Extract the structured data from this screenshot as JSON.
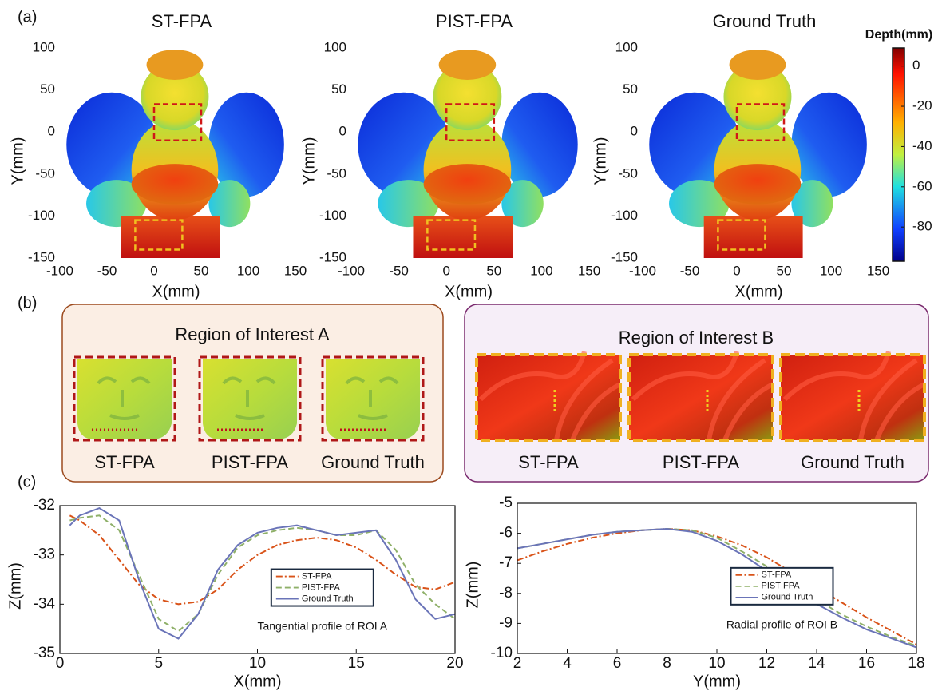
{
  "panels": {
    "a": "(a)",
    "b": "(b)",
    "c": "(c)"
  },
  "roi": [
    {
      "title": "Region of Interest A",
      "captions": [
        "ST-FPA",
        "PIST-FPA",
        "Ground Truth"
      ]
    },
    {
      "title": "Region of Interest B",
      "captions": [
        "ST-FPA",
        "PIST-FPA",
        "Ground Truth"
      ]
    }
  ],
  "chart_data": [
    {
      "type": "image",
      "title": "ST-FPA",
      "x_label": "X(mm)",
      "y_label": "Y(mm)",
      "xlim": [
        -100,
        150
      ],
      "ylim": [
        -150,
        100
      ],
      "xticks": [
        -100,
        -50,
        0,
        50,
        100,
        150
      ],
      "yticks": [
        -150,
        -100,
        -50,
        0,
        50,
        100
      ]
    },
    {
      "type": "image",
      "title": "PIST-FPA",
      "x_label": "X(mm)",
      "y_label": "Y(mm)",
      "xlim": [
        -100,
        150
      ],
      "ylim": [
        -150,
        100
      ],
      "xticks": [
        -100,
        -50,
        0,
        50,
        100,
        150
      ],
      "yticks": [
        -150,
        -100,
        -50,
        0,
        50,
        100
      ]
    },
    {
      "type": "image",
      "title": "Ground Truth",
      "x_label": "X(mm)",
      "y_label": "Y(mm)",
      "xlim": [
        -100,
        150
      ],
      "ylim": [
        -150,
        100
      ],
      "xticks": [
        -100,
        -50,
        0,
        50,
        100,
        150
      ],
      "yticks": [
        -150,
        -100,
        -50,
        0,
        50,
        100
      ]
    },
    {
      "type": "colorbar",
      "title": "Depth(mm)",
      "ylim": [
        -97,
        9
      ],
      "yticks": [
        -80,
        -60,
        -40,
        -20,
        0
      ]
    },
    {
      "type": "line",
      "x_label": "X(mm)",
      "y_label": "Z(mm)",
      "annotation": "Tangential profile of ROI A",
      "xlim": [
        0,
        20
      ],
      "ylim": [
        -35,
        -32
      ],
      "xticks": [
        0,
        5,
        10,
        15,
        20
      ],
      "yticks": [
        -35,
        -34,
        -33,
        -32
      ],
      "x": [
        0.5,
        1,
        2,
        3,
        4,
        5,
        6,
        7,
        8,
        9,
        10,
        11,
        12,
        13,
        14,
        15,
        16,
        17,
        18,
        19,
        20
      ],
      "series": [
        {
          "name": "ST-FPA",
          "color": "#d95319",
          "linestyle": "dash-dot",
          "values": [
            -32.2,
            -32.3,
            -32.6,
            -33.1,
            -33.6,
            -33.9,
            -34.0,
            -33.95,
            -33.7,
            -33.3,
            -33.0,
            -32.8,
            -32.7,
            -32.65,
            -32.7,
            -32.85,
            -33.1,
            -33.4,
            -33.65,
            -33.7,
            -33.55
          ]
        },
        {
          "name": "PIST-FPA",
          "color": "#8fb069",
          "linestyle": "dashed",
          "values": [
            -32.3,
            -32.25,
            -32.2,
            -32.5,
            -33.4,
            -34.3,
            -34.55,
            -34.2,
            -33.4,
            -32.85,
            -32.6,
            -32.5,
            -32.45,
            -32.5,
            -32.6,
            -32.6,
            -32.5,
            -32.9,
            -33.6,
            -34.0,
            -34.3
          ]
        },
        {
          "name": "Ground Truth",
          "color": "#6a74b8",
          "linestyle": "solid",
          "values": [
            -32.4,
            -32.2,
            -32.05,
            -32.3,
            -33.5,
            -34.5,
            -34.7,
            -34.2,
            -33.3,
            -32.8,
            -32.55,
            -32.45,
            -32.4,
            -32.5,
            -32.6,
            -32.55,
            -32.5,
            -33.1,
            -33.9,
            -34.3,
            -34.2
          ]
        }
      ]
    },
    {
      "type": "line",
      "x_label": "Y(mm)",
      "y_label": "Z(mm)",
      "annotation": "Radial profile of ROI B",
      "xlim": [
        2,
        18
      ],
      "ylim": [
        -10,
        -5
      ],
      "xticks": [
        2,
        4,
        6,
        8,
        10,
        12,
        14,
        16,
        18
      ],
      "yticks": [
        -10,
        -9,
        -8,
        -7,
        -6,
        -5
      ],
      "x": [
        2,
        3,
        4,
        5,
        6,
        7,
        8,
        9,
        10,
        11,
        12,
        13,
        14,
        15,
        16,
        17,
        18
      ],
      "series": [
        {
          "name": "ST-FPA",
          "color": "#d95319",
          "linestyle": "dash-dot",
          "values": [
            -6.9,
            -6.6,
            -6.35,
            -6.15,
            -6.0,
            -5.9,
            -5.85,
            -5.9,
            -6.1,
            -6.4,
            -6.8,
            -7.3,
            -7.8,
            -8.3,
            -8.8,
            -9.25,
            -9.7
          ]
        },
        {
          "name": "PIST-FPA",
          "color": "#8fb069",
          "linestyle": "dashed",
          "values": [
            -6.5,
            -6.35,
            -6.2,
            -6.05,
            -5.95,
            -5.9,
            -5.85,
            -5.9,
            -6.15,
            -6.6,
            -7.1,
            -7.65,
            -8.2,
            -8.7,
            -9.1,
            -9.45,
            -9.75
          ]
        },
        {
          "name": "Ground Truth",
          "color": "#6a74b8",
          "linestyle": "solid",
          "values": [
            -6.5,
            -6.35,
            -6.2,
            -6.05,
            -5.95,
            -5.9,
            -5.85,
            -5.95,
            -6.25,
            -6.7,
            -7.25,
            -7.8,
            -8.35,
            -8.8,
            -9.2,
            -9.5,
            -9.8
          ]
        }
      ]
    }
  ]
}
